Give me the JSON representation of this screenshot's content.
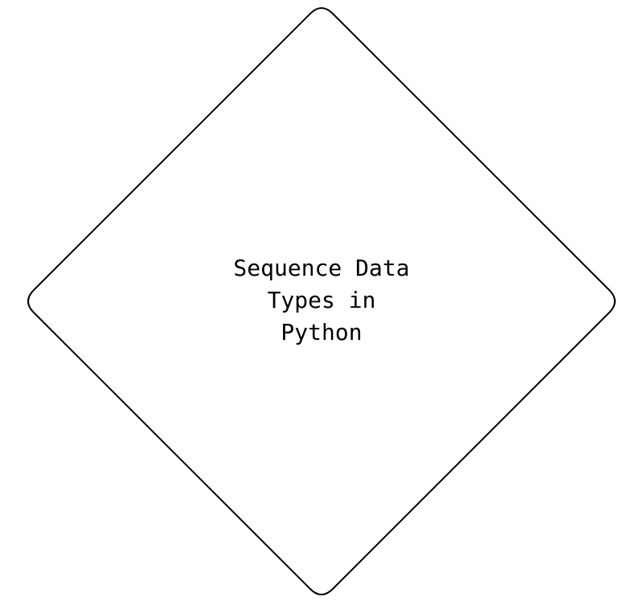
{
  "diagram": {
    "node": {
      "shape": "diamond",
      "label_lines": [
        "Sequence Data",
        "Types in",
        "Python"
      ],
      "stroke_color": "#000000",
      "fill_color": "#ffffff"
    }
  }
}
